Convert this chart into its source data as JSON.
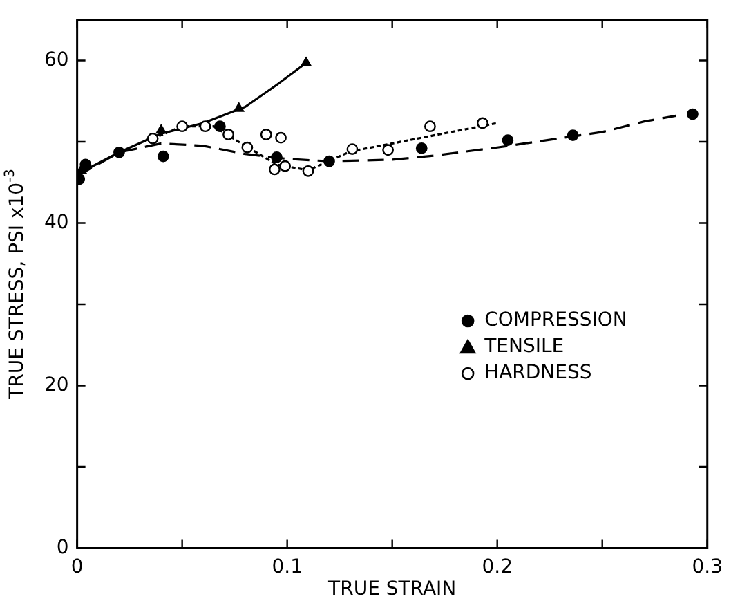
{
  "chart_data": {
    "type": "scatter",
    "xlabel": "TRUE STRAIN",
    "ylabel": "TRUE STRESS, PSI x10$^{-3}$",
    "xlim": [
      0,
      0.3
    ],
    "ylim": [
      0,
      65
    ],
    "xticks": [
      0,
      {
        "value": 0.05,
        "label": null
      },
      0.1,
      {
        "value": 0.15,
        "label": null
      },
      0.2,
      {
        "value": 0.25,
        "label": null
      },
      0.3
    ],
    "yticks": [
      0,
      {
        "value": 10,
        "label": null
      },
      20,
      {
        "value": 30,
        "label": null
      },
      40,
      {
        "value": 50,
        "label": null
      },
      60
    ],
    "grid": false,
    "legend": "center right",
    "series": [
      {
        "name": "COMPRESSION",
        "marker": "circle",
        "color": "#000000",
        "x": [
          0.001,
          0.004,
          0.02,
          0.041,
          0.068,
          0.095,
          0.12,
          0.164,
          0.205,
          0.236,
          0.293
        ],
        "values": [
          45.4,
          47.2,
          48.7,
          48.2,
          51.9,
          48.1,
          47.6,
          49.2,
          50.2,
          50.8,
          53.4
        ]
      },
      {
        "name": "TENSILE",
        "marker": "triangle",
        "color": "#000000",
        "x": [
          0.002,
          0.04,
          0.077,
          0.109
        ],
        "values": [
          46.5,
          51.4,
          54.1,
          59.7
        ]
      },
      {
        "name": "HARDNESS",
        "marker": "circle",
        "color": "#ffffff",
        "x": [
          0.036,
          0.05,
          0.061,
          0.072,
          0.081,
          0.09,
          0.097,
          0.094,
          0.099,
          0.11,
          0.131,
          0.148,
          0.168,
          0.193
        ],
        "values": [
          50.4,
          51.9,
          51.9,
          50.9,
          49.3,
          50.9,
          50.5,
          46.6,
          47.0,
          46.4,
          49.1,
          49.0,
          51.9,
          52.3
        ]
      },
      {
        "type": "line",
        "marker": "none",
        "line_style": "solid",
        "color": "#000000",
        "x": [
          0,
          0.02,
          0.04,
          0.06,
          0.08,
          0.095,
          0.109
        ],
        "values": [
          46,
          48.7,
          51,
          52.3,
          54.3,
          57,
          59.7
        ]
      },
      {
        "type": "line",
        "marker": "none",
        "line_style": "dashed",
        "color": "#000000",
        "x": [
          0,
          0.02,
          0.04,
          0.06,
          0.08,
          0.1,
          0.12,
          0.15,
          0.17,
          0.2,
          0.25,
          0.27,
          0.285
        ],
        "values": [
          45.8,
          48.7,
          49.8,
          49.5,
          48.5,
          47.9,
          47.6,
          47.8,
          48.3,
          49.3,
          51.2,
          52.5,
          53.2
        ]
      },
      {
        "type": "line",
        "marker": "none",
        "line_style": "dotted",
        "color": "#000000",
        "x": [
          0.036,
          0.05,
          0.065,
          0.08,
          0.095,
          0.11,
          0.13,
          0.15,
          0.18,
          0.2
        ],
        "values": [
          50.4,
          51.9,
          51.9,
          49.5,
          47.2,
          46.5,
          48.8,
          49.8,
          51.3,
          52.3
        ]
      }
    ]
  }
}
